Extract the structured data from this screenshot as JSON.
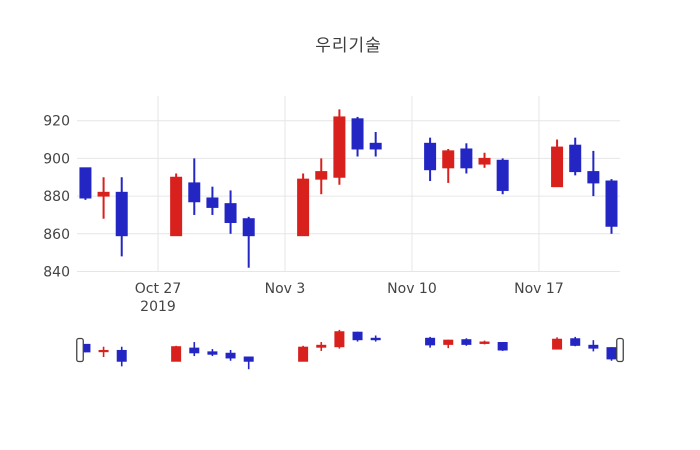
{
  "chart_data": {
    "type": "candlestick",
    "title": "우리기술",
    "x": [
      "2019-10-23",
      "2019-10-24",
      "2019-10-25",
      "2019-10-28",
      "2019-10-29",
      "2019-10-30",
      "2019-10-31",
      "2019-11-01",
      "2019-11-04",
      "2019-11-05",
      "2019-11-06",
      "2019-11-07",
      "2019-11-08",
      "2019-11-11",
      "2019-11-12",
      "2019-11-13",
      "2019-11-14",
      "2019-11-15",
      "2019-11-18",
      "2019-11-19",
      "2019-11-20",
      "2019-11-21"
    ],
    "open": [
      895,
      880,
      882,
      859,
      887,
      879,
      876,
      868,
      859,
      889,
      890,
      921,
      908,
      908,
      895,
      905,
      897,
      899,
      885,
      907,
      893,
      888
    ],
    "high": [
      895,
      890,
      890,
      892,
      900,
      885,
      883,
      869,
      892,
      900,
      926,
      922,
      914,
      911,
      905,
      908,
      903,
      900,
      910,
      911,
      904,
      889
    ],
    "low": [
      878,
      868,
      848,
      859,
      870,
      870,
      860,
      842,
      859,
      881,
      886,
      901,
      901,
      888,
      887,
      892,
      895,
      881,
      885,
      891,
      880,
      860
    ],
    "close": [
      879,
      882,
      859,
      890,
      877,
      874,
      866,
      859,
      889,
      893,
      922,
      905,
      905,
      894,
      904,
      895,
      900,
      883,
      906,
      893,
      887,
      864
    ],
    "increasing_color": "#d8201d",
    "decreasing_color": "#2426c4",
    "grid": true,
    "gridline_color": "#e6e6e6",
    "tick_color": "#444444",
    "yticks": [
      840,
      860,
      880,
      900,
      920
    ],
    "y_range": [
      840,
      933
    ],
    "xticks": [
      {
        "date": "2019-10-27",
        "label": "Oct 27",
        "sublabel": "2019"
      },
      {
        "date": "2019-11-03",
        "label": "Nov 3",
        "sublabel": ""
      },
      {
        "date": "2019-11-10",
        "label": "Nov 10",
        "sublabel": ""
      },
      {
        "date": "2019-11-17",
        "label": "Nov 17",
        "sublabel": ""
      }
    ],
    "legend_position": "none",
    "xlabel": "",
    "ylabel": "",
    "rangeslider": {
      "visible": true,
      "handle_color": "#ffffff",
      "handle_border_color": "#444444"
    }
  }
}
